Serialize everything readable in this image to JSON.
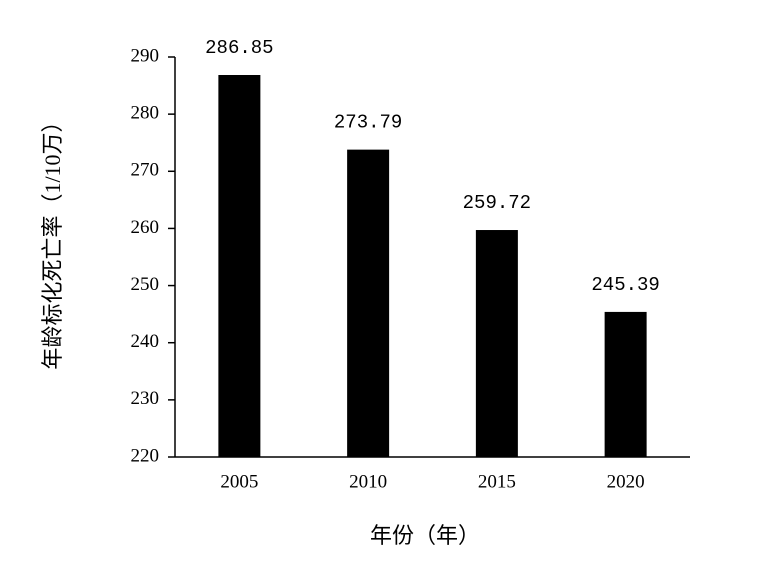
{
  "chart_data": {
    "type": "bar",
    "y_label": "年龄标化死亡率（1/10万）",
    "x_label": "年份（年）",
    "categories": [
      "2005",
      "2010",
      "2015",
      "2020"
    ],
    "values": [
      286.85,
      273.79,
      259.72,
      245.39
    ],
    "color": "#000000",
    "ylim": [
      220,
      290
    ],
    "yticks": [
      220,
      230,
      240,
      250,
      260,
      270,
      280,
      290
    ],
    "grid": false
  }
}
